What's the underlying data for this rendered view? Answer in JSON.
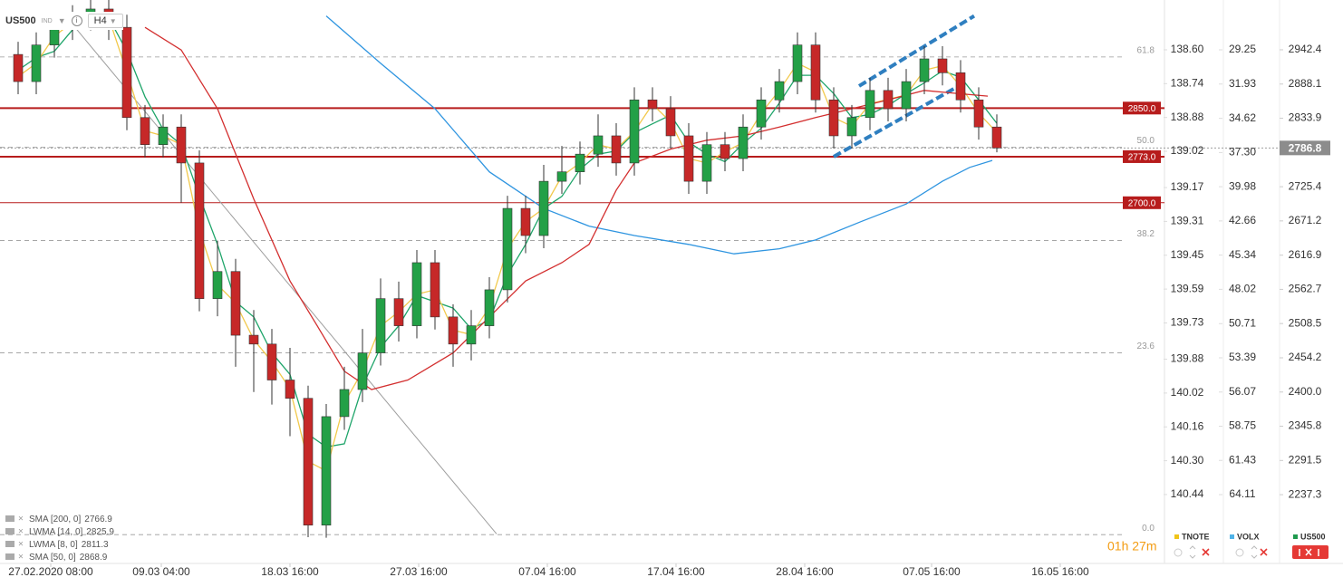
{
  "toolbar": {
    "symbol": "US500",
    "market": "IND",
    "interval": "H4"
  },
  "chart_data": {
    "type": "candlestick",
    "name": "US500",
    "color": "#1f9a4e",
    "up_color": "#23a047",
    "down_color": "#c62828",
    "open": [
      2935,
      2892,
      2950,
      2978,
      2993,
      3007,
      2978,
      2835,
      2792,
      2820,
      2763,
      2548,
      2591,
      2490,
      2476,
      2419,
      2390,
      2189,
      2361,
      2404,
      2462,
      2548,
      2505,
      2605,
      2519,
      2476,
      2505,
      2562,
      2691,
      2648,
      2734,
      2749,
      2777,
      2806,
      2763,
      2863,
      2849,
      2806,
      2734,
      2792,
      2770,
      2820,
      2863,
      2892,
      2950,
      2863,
      2806,
      2835,
      2878,
      2849,
      2892,
      2928,
      2906,
      2863,
      2820
    ],
    "high": [
      2955,
      2970,
      2998,
      3013,
      3027,
      3027,
      2998,
      2855,
      2840,
      2840,
      2783,
      2640,
      2611,
      2530,
      2500,
      2470,
      2410,
      2381,
      2440,
      2500,
      2580,
      2575,
      2625,
      2625,
      2539,
      2530,
      2582,
      2711,
      2711,
      2760,
      2790,
      2797,
      2840,
      2826,
      2883,
      2883,
      2869,
      2826,
      2812,
      2812,
      2840,
      2883,
      2912,
      2970,
      2970,
      2883,
      2855,
      2898,
      2898,
      2912,
      2948,
      2948,
      2926,
      2883,
      2840
    ],
    "low": [
      2872,
      2872,
      2930,
      2958,
      2973,
      2958,
      2815,
      2772,
      2772,
      2700,
      2528,
      2520,
      2440,
      2400,
      2380,
      2330,
      2170,
      2169,
      2340,
      2384,
      2442,
      2480,
      2485,
      2499,
      2440,
      2450,
      2485,
      2542,
      2620,
      2628,
      2714,
      2729,
      2757,
      2743,
      2743,
      2829,
      2786,
      2714,
      2714,
      2750,
      2750,
      2800,
      2843,
      2872,
      2843,
      2786,
      2786,
      2815,
      2829,
      2829,
      2872,
      2886,
      2843,
      2800,
      2780
    ],
    "close": [
      2892,
      2950,
      2978,
      2993,
      3007,
      2978,
      2835,
      2792,
      2820,
      2763,
      2548,
      2591,
      2490,
      2476,
      2419,
      2390,
      2189,
      2361,
      2404,
      2462,
      2548,
      2505,
      2605,
      2519,
      2476,
      2505,
      2562,
      2691,
      2648,
      2734,
      2749,
      2777,
      2806,
      2763,
      2863,
      2849,
      2806,
      2734,
      2792,
      2770,
      2820,
      2863,
      2892,
      2950,
      2863,
      2806,
      2835,
      2878,
      2849,
      2892,
      2928,
      2906,
      2863,
      2820,
      2786.8
    ],
    "xlim": [
      -1,
      63.25
    ],
    "xticks": [
      {
        "value": 1.8,
        "label": "27.02.2020  08:00"
      },
      {
        "value": 7.9,
        "label": "09.03  04:00"
      },
      {
        "value": 15,
        "label": "18.03  16:00"
      },
      {
        "value": 22.1,
        "label": "27.03  16:00"
      },
      {
        "value": 29.2,
        "label": "07.04  16:00"
      },
      {
        "value": 36.3,
        "label": "17.04  16:00"
      },
      {
        "value": 43.4,
        "label": "28.04  16:00"
      },
      {
        "value": 50.4,
        "label": "07.05  16:00"
      },
      {
        "value": 57.5,
        "label": "16.05  16:00"
      }
    ],
    "ylim": [
      2128.3,
      3021.3
    ],
    "yticks": [
      2942.4,
      2888.1,
      2833.9,
      2725.4,
      2671.2,
      2616.9,
      2562.7,
      2508.5,
      2454.2,
      {
        "value": 2400,
        "label": "2400.0"
      },
      2345.8,
      2291.5,
      2237.3
    ],
    "current_price": 2786.8,
    "lines": [
      {
        "name": "SMA [200, 0]",
        "last_value": 2766.9,
        "color": "#2f95e0",
        "x": [
          17,
          20,
          23,
          26,
          29,
          31.5,
          34,
          37,
          39.5,
          42,
          44,
          46.5,
          49,
          51,
          52.5,
          53.75
        ],
        "values": [
          2996,
          2921,
          2849,
          2749,
          2691,
          2663,
          2648,
          2634,
          2619,
          2627,
          2641,
          2670,
          2698,
          2734,
          2756,
          2767
        ]
      },
      {
        "name": "LWMA [14, 0]",
        "last_value": 2825.9,
        "color": "#1fa56a",
        "values": [
          2910,
          2930,
          2940,
          2974,
          2993,
          2993,
          2940,
          2868,
          2816,
          2792,
          2710,
          2634,
          2543,
          2519,
          2462,
          2428,
          2333,
          2313,
          2318,
          2409,
          2471,
          2505,
          2553,
          2543,
          2533,
          2500,
          2514,
          2586,
          2634,
          2691,
          2710,
          2753,
          2777,
          2782,
          2811,
          2825,
          2839,
          2796,
          2777,
          2765,
          2794,
          2818,
          2858,
          2902,
          2902,
          2873,
          2835,
          2840,
          2854,
          2873,
          2890,
          2909,
          2899,
          2863,
          2825.9
        ]
      },
      {
        "name": "LWMA [8, 0]",
        "last_value": 2811.3,
        "color": "#f2c94c",
        "values": [
          2900,
          2921,
          2964,
          2986,
          3000,
          2993,
          2907,
          2814,
          2806,
          2792,
          2656,
          2570,
          2541,
          2483,
          2448,
          2405,
          2290,
          2275,
          2383,
          2433,
          2505,
          2527,
          2555,
          2562,
          2498,
          2491,
          2534,
          2627,
          2670,
          2691,
          2742,
          2763,
          2792,
          2785,
          2813,
          2856,
          2828,
          2770,
          2763,
          2781,
          2795,
          2842,
          2878,
          2921,
          2907,
          2835,
          2821,
          2857,
          2864,
          2871,
          2910,
          2917,
          2885,
          2842,
          2811.3
        ]
      },
      {
        "name": "SMA [50, 0]",
        "last_value": 2868.9,
        "color": "#d32f2f",
        "x": [
          7,
          9,
          11,
          13,
          15,
          16.5,
          18,
          19.5,
          21.5,
          24,
          26,
          28,
          30,
          31.5,
          33,
          34,
          36,
          38,
          40,
          42,
          44,
          46,
          48,
          50,
          51.5,
          53.5
        ],
        "values": [
          2978,
          2942,
          2849,
          2706,
          2576,
          2505,
          2433,
          2404,
          2419,
          2462,
          2519,
          2576,
          2605,
          2634,
          2720,
          2763,
          2785,
          2799,
          2806,
          2820,
          2835,
          2849,
          2863,
          2878,
          2874,
          2869
        ]
      }
    ],
    "levels": [
      {
        "value": 2850,
        "label": "2850.0",
        "style": "thick"
      },
      {
        "value": 2773,
        "label": "2773.0",
        "style": "thick"
      },
      {
        "value": 2700,
        "label": "2700.0",
        "style": "thin"
      }
    ],
    "level_color": "#b71c1c",
    "fib_levels": [
      {
        "label": "61.8",
        "price": 2931
      },
      {
        "label": "50.0",
        "price": 2788
      },
      {
        "label": "38.2",
        "price": 2640
      },
      {
        "label": "23.6",
        "price": 2462
      },
      {
        "label": "0.0",
        "price": 2174
      }
    ],
    "trendlines": [
      {
        "color": "#9e9e9e",
        "dashed": false,
        "x": [
          2.5,
          26.4
        ],
        "values": [
          3000,
          2175
        ]
      },
      {
        "color": "#2f7fc0",
        "dashed": true,
        "x": [
          46.4,
          52.75
        ],
        "values": [
          2885,
          2996
        ]
      },
      {
        "color": "#2f7fc0",
        "dashed": true,
        "x": [
          45,
          51.9
        ],
        "values": [
          2773,
          2885
        ]
      }
    ],
    "secondary_axes": [
      {
        "name": "TNOTE",
        "color": "#f0c419",
        "ylim": [
          140.725,
          138.394
        ],
        "yticks": [
          {
            "value": 138.6,
            "label": "138.60"
          },
          138.74,
          138.88,
          139.02,
          139.17,
          139.31,
          139.45,
          139.59,
          139.73,
          139.88,
          140.02,
          140.16,
          {
            "value": 140.3,
            "label": "140.30"
          },
          140.44
        ]
      },
      {
        "name": "VOLX",
        "color": "#4fb3e8",
        "ylim": [
          69.506,
          25.345
        ],
        "yticks": [
          29.25,
          31.93,
          34.62,
          {
            "value": 37.3,
            "label": "37.30"
          },
          39.98,
          42.66,
          45.34,
          48.02,
          50.71,
          53.39,
          56.07,
          58.75,
          61.43,
          64.11
        ]
      }
    ],
    "countdown": "01h 27m"
  }
}
